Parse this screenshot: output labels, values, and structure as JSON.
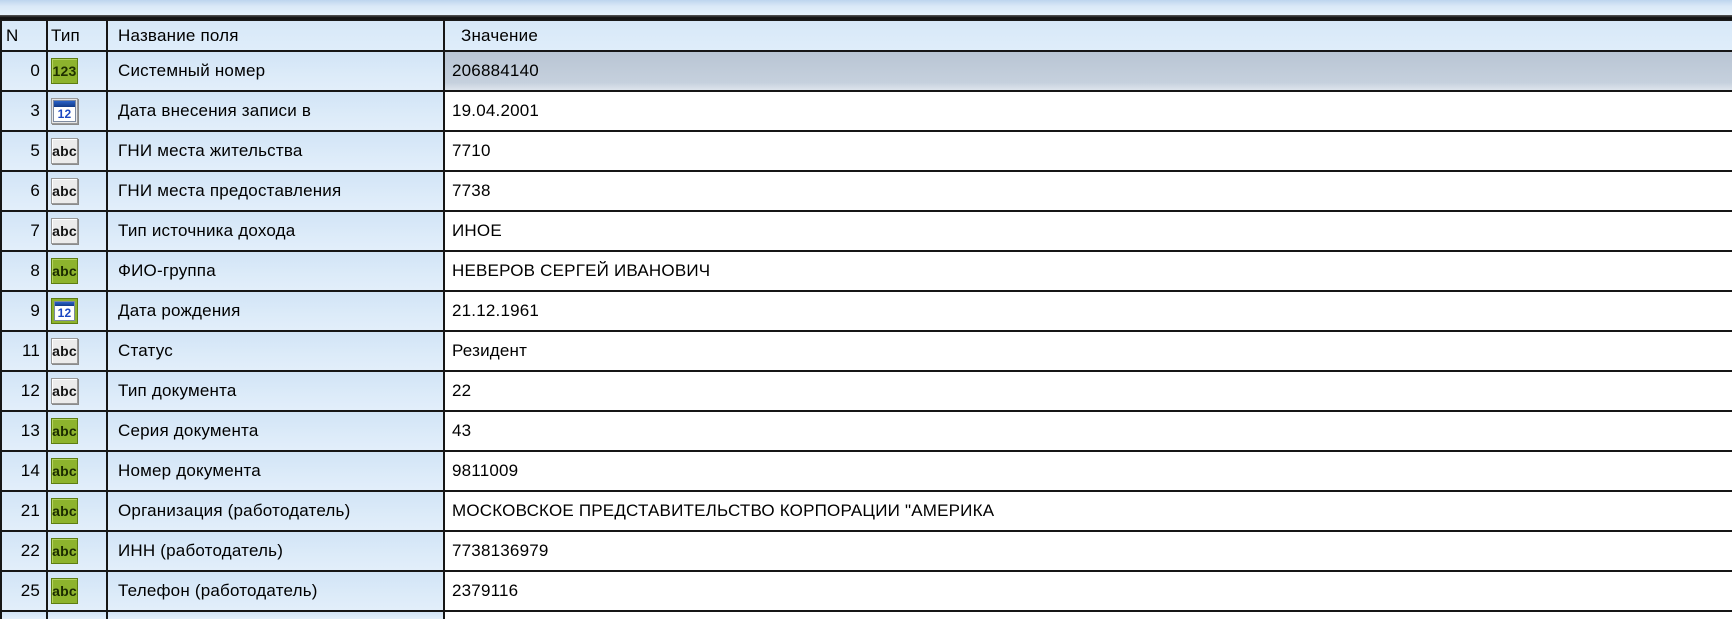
{
  "colors": {
    "accent_green": "#8db32d",
    "header_bg": "#d9e9f8",
    "label_cell_bg": "#d8e8f7",
    "value_cell_bg": "#ffffff",
    "selected_value_bg": "#c1cdda",
    "grid_line": "#161616",
    "calendar_blue": "#1b47c2",
    "top_strip_blue": "#d9e8f7"
  },
  "icons": {
    "numeric_glyph": "123",
    "text_glyph": "abc",
    "calendar_day_glyph": "12"
  },
  "table": {
    "columns": [
      {
        "key": "n",
        "label": "N"
      },
      {
        "key": "type",
        "label": "Тип"
      },
      {
        "key": "name",
        "label": "Название поля"
      },
      {
        "key": "value",
        "label": "Значение"
      }
    ],
    "rows": [
      {
        "n": "0",
        "type": "numeric-green",
        "name": "Системный номер",
        "value": "206884140",
        "selected": true
      },
      {
        "n": "3",
        "type": "date",
        "name": "Дата внесения записи в",
        "value": "19.04.2001"
      },
      {
        "n": "5",
        "type": "text",
        "name": "ГНИ места жительства",
        "value": "7710"
      },
      {
        "n": "6",
        "type": "text",
        "name": "ГНИ места предоставления",
        "value": "7738"
      },
      {
        "n": "7",
        "type": "text",
        "name": "Тип источника дохода",
        "value": "ИНОЕ"
      },
      {
        "n": "8",
        "type": "text-green",
        "name": "ФИО-группа",
        "value": "НЕВЕРОВ СЕРГЕЙ ИВАНОВИЧ"
      },
      {
        "n": "9",
        "type": "date-green",
        "name": "Дата рождения",
        "value": "21.12.1961"
      },
      {
        "n": "11",
        "type": "text",
        "name": "Статус",
        "value": "Резидент"
      },
      {
        "n": "12",
        "type": "text",
        "name": "Тип документа",
        "value": "22"
      },
      {
        "n": "13",
        "type": "text-green",
        "name": "Серия документа",
        "value": "43"
      },
      {
        "n": "14",
        "type": "text-green",
        "name": "Номер документа",
        "value": "9811009"
      },
      {
        "n": "21",
        "type": "text-green",
        "name": "Организация (работодатель)",
        "value": "МОСКОВСКОЕ ПРЕДСТАВИТЕЛЬСТВО КОРПОРАЦИИ \"АМЕРИКА"
      },
      {
        "n": "22",
        "type": "text-green",
        "name": "ИНН (работодатель)",
        "value": "7738136979"
      },
      {
        "n": "25",
        "type": "text-green",
        "name": "Телефон (работодатель)",
        "value": "2379116"
      }
    ]
  }
}
